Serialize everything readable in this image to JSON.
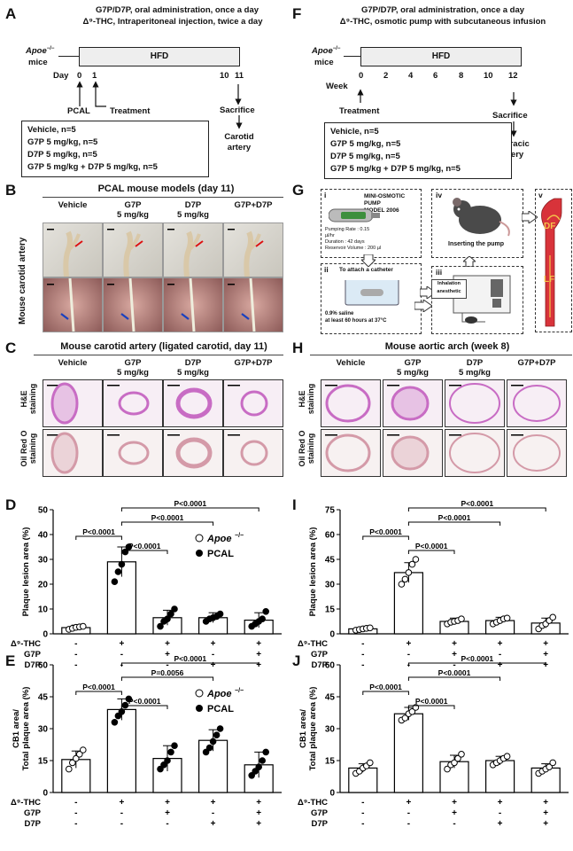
{
  "panels": {
    "A": {
      "letter": "A",
      "line1": "G7P/D7P, oral administration, once a day",
      "line2": "Δ⁹-THC, Intraperitoneal injection, twice a day",
      "mice": "mice",
      "apoe": "Apoe",
      "apoe_sup": "−/−",
      "hfd": "HFD",
      "day_label": "Day",
      "ticks": [
        "0",
        "1",
        "10",
        "11"
      ],
      "pcal": "PCAL",
      "treatment": "Treatment",
      "sacrifice": "Sacrifice",
      "carotid": [
        "Carotid",
        "artery"
      ],
      "groups": [
        "Vehicle, n=5",
        "G7P 5 mg/kg, n=5",
        "D7P 5 mg/kg, n=5",
        "G7P 5 mg/kg + D7P 5 mg/kg, n=5"
      ]
    },
    "F": {
      "letter": "F",
      "line1": "G7P/D7P, oral administration, once a day",
      "line2": "Δ⁹-THC, osmotic pump with subcutaneous infusion",
      "mice": "mice",
      "apoe": "Apoe",
      "apoe_sup": "−/−",
      "hfd": "HFD",
      "week_label": "Week",
      "ticks": [
        "0",
        "2",
        "4",
        "6",
        "8",
        "10",
        "12"
      ],
      "treatment": "Treatment",
      "sacrifice": "Sacrifice",
      "thoracic": [
        "Thoracic",
        "artery"
      ],
      "groups": [
        "Vehicle, n=5",
        "G7P 5 mg/kg, n=5",
        "D7P 5 mg/kg, n=5",
        "G7P 5 mg/kg + D7P 5 mg/kg, n=5"
      ]
    },
    "B": {
      "letter": "B",
      "title": "PCAL mouse models (day 11)",
      "side": "Mouse carotid artery",
      "cols": [
        [
          "Vehicle",
          ""
        ],
        [
          "G7P",
          "5 mg/kg"
        ],
        [
          "D7P",
          "5 mg/kg"
        ],
        [
          "G7P+D7P",
          ""
        ]
      ]
    },
    "C": {
      "letter": "C",
      "title": "Mouse carotid artery (ligated carotid, day 11)",
      "cols": [
        [
          "Vehicle",
          ""
        ],
        [
          "G7P",
          "5 mg/kg"
        ],
        [
          "D7P",
          "5 mg/kg"
        ],
        [
          "G7P+D7P",
          ""
        ]
      ],
      "rows": [
        [
          "H&E",
          "staining"
        ],
        [
          "Oil Red O",
          "staining"
        ]
      ]
    },
    "G": {
      "letter": "G",
      "i": "i",
      "ii": "ii",
      "iii": "iii",
      "iv": "iv",
      "v": "v",
      "pump_title": [
        "MINI-OSMOTIC PUMP",
        "MODEL 2006"
      ],
      "pump_specs": [
        "Pumping Rate    : 0.15",
        "µl/hr",
        "Duration          : 42 days",
        "Reservoir Volume : 200 µl"
      ],
      "catheter": "To attach a catheter",
      "saline": [
        "0.9% saline",
        "at least 60 hours at 37°C"
      ],
      "inhal": [
        "Inhalation",
        "anesthetic"
      ],
      "inserting": "Inserting the pump",
      "df": "DF",
      "lf": "LF"
    },
    "H": {
      "letter": "H",
      "title": "Mouse aortic arch (week 8)",
      "cols": [
        [
          "Vehicle",
          ""
        ],
        [
          "G7P",
          "5 mg/kg"
        ],
        [
          "D7P",
          "5 mg/kg"
        ],
        [
          "G7P+D7P",
          ""
        ]
      ],
      "rows": [
        [
          "H&E",
          "staining"
        ],
        [
          "Oil Red O",
          "staining"
        ]
      ]
    },
    "D": {
      "letter": "D"
    },
    "E": {
      "letter": "E"
    },
    "I": {
      "letter": "I"
    },
    "J": {
      "letter": "J"
    }
  },
  "treatment_rows": {
    "labels": [
      "Δ⁹-THC",
      "G7P",
      "D7P"
    ],
    "values": [
      [
        "-",
        "+",
        "+",
        "+",
        "+"
      ],
      [
        "-",
        "-",
        "+",
        "-",
        "+"
      ],
      [
        "-",
        "-",
        "-",
        "+",
        "+"
      ]
    ]
  },
  "legend": {
    "apoe": "Apoe",
    "apoe_sup": "−/−",
    "pcal": "PCAL"
  },
  "colors": {
    "he": "#c86cc4",
    "oro": "#d49aa8",
    "aorta": "#d8333a",
    "scale": "#000000"
  },
  "chart_data": [
    {
      "panel": "D",
      "type": "bar",
      "ylabel": "Plaque lesion area (%)",
      "ylim": [
        0,
        50
      ],
      "yticks": [
        0,
        10,
        20,
        30,
        40,
        50
      ],
      "bars": [
        2.5,
        29,
        6.5,
        6.5,
        5.5
      ],
      "err": [
        1,
        6,
        3,
        2,
        3
      ],
      "points": [
        [
          1.8,
          2.2,
          2.6,
          2.8,
          3.0
        ],
        [
          21,
          25,
          28,
          33,
          35
        ],
        [
          3,
          5,
          6,
          8,
          10
        ],
        [
          5,
          6,
          6.5,
          7,
          8
        ],
        [
          3,
          4,
          5,
          6,
          9
        ]
      ],
      "open_first": true,
      "comparisons": [
        {
          "from": 1,
          "to": 2,
          "label": "P<0.0001"
        },
        {
          "from": 0,
          "to": 1,
          "label": "P<0.0001"
        },
        {
          "from": 1,
          "to": 3,
          "label": "P<0.0001"
        },
        {
          "from": 1,
          "to": 4,
          "label": "P<0.0001"
        }
      ],
      "legend": true
    },
    {
      "panel": "E",
      "type": "bar",
      "ylabel": [
        "CB1 area/",
        "Total plaque area (%)"
      ],
      "ylim": [
        0,
        60
      ],
      "yticks": [
        0,
        15,
        30,
        45,
        60
      ],
      "bars": [
        15.5,
        39,
        16,
        24.5,
        13
      ],
      "err": [
        4,
        5,
        6,
        5,
        6
      ],
      "points": [
        [
          11,
          14,
          16,
          18,
          20
        ],
        [
          33,
          36,
          38,
          41,
          44
        ],
        [
          11,
          13,
          15,
          19,
          22
        ],
        [
          19,
          21,
          24,
          27,
          30
        ],
        [
          8,
          10,
          12,
          15,
          19
        ]
      ],
      "open_first": true,
      "comparisons": [
        {
          "from": 1,
          "to": 2,
          "label": "P<0.0001"
        },
        {
          "from": 0,
          "to": 1,
          "label": "P<0.0001"
        },
        {
          "from": 1,
          "to": 3,
          "label": "P=0.0056"
        },
        {
          "from": 1,
          "to": 4,
          "label": "P<0.0001"
        }
      ],
      "legend": true
    },
    {
      "panel": "I",
      "type": "bar",
      "ylabel": "Plaque lesion area (%)",
      "ylim": [
        0,
        75
      ],
      "yticks": [
        0,
        15,
        30,
        45,
        60,
        75
      ],
      "bars": [
        3,
        37,
        7.5,
        8,
        6.5
      ],
      "err": [
        1,
        6,
        2,
        2,
        3
      ],
      "points": [
        [
          2.2,
          2.6,
          3,
          3.3,
          3.6
        ],
        [
          30,
          33,
          37,
          42,
          45
        ],
        [
          6,
          7,
          7.5,
          8,
          9
        ],
        [
          6,
          7,
          8,
          9,
          9.5
        ],
        [
          3,
          5,
          6,
          8,
          10
        ]
      ],
      "open_all": true,
      "comparisons": [
        {
          "from": 1,
          "to": 2,
          "label": "P<0.0001"
        },
        {
          "from": 0,
          "to": 1,
          "label": "P<0.0001"
        },
        {
          "from": 1,
          "to": 3,
          "label": "P<0.0001"
        },
        {
          "from": 1,
          "to": 4,
          "label": "P<0.0001"
        }
      ]
    },
    {
      "panel": "J",
      "type": "bar",
      "ylabel": [
        "CB1 area/",
        "Total plaque area (%)"
      ],
      "ylim": [
        0,
        60
      ],
      "yticks": [
        0,
        15,
        30,
        45,
        60
      ],
      "bars": [
        11.5,
        37,
        14.5,
        15,
        11.5
      ],
      "err": [
        2,
        3,
        3,
        2,
        2
      ],
      "points": [
        [
          9,
          10,
          11.5,
          12.5,
          14
        ],
        [
          34,
          35,
          37,
          38,
          40
        ],
        [
          11,
          13,
          14,
          16,
          18
        ],
        [
          13,
          14,
          15,
          16,
          17
        ],
        [
          9,
          10,
          11,
          12,
          14
        ]
      ],
      "open_all": true,
      "comparisons": [
        {
          "from": 1,
          "to": 2,
          "label": "P<0.0001"
        },
        {
          "from": 0,
          "to": 1,
          "label": "P<0.0001"
        },
        {
          "from": 1,
          "to": 3,
          "label": "P<0.0001"
        },
        {
          "from": 1,
          "to": 4,
          "label": "P<0.0001"
        }
      ]
    }
  ]
}
